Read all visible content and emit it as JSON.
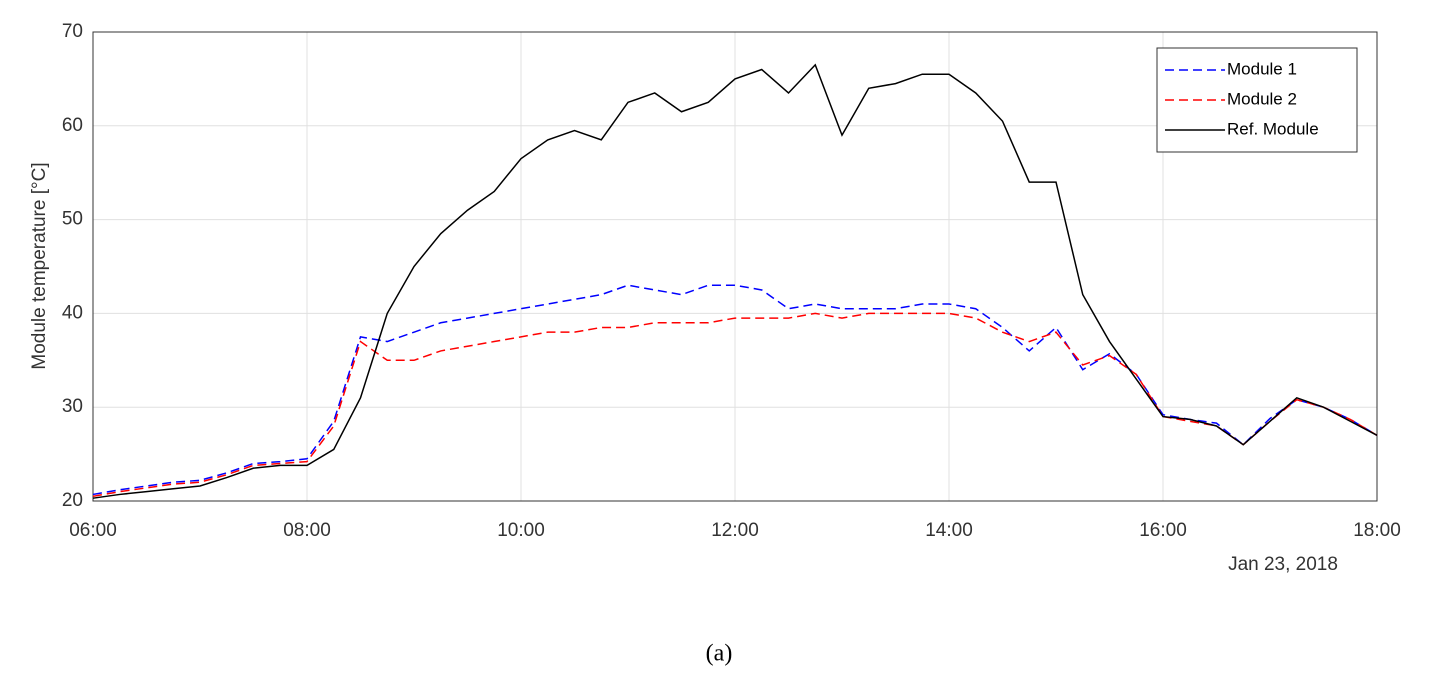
{
  "chart_data": {
    "type": "line",
    "y_label": "Module temperature [°C]",
    "date_label": "Jan 23, 2018",
    "caption": "(a)",
    "x": [
      6,
      6.25,
      6.5,
      6.75,
      7,
      7.25,
      7.5,
      7.75,
      8,
      8.25,
      8.5,
      8.75,
      9,
      9.25,
      9.5,
      9.75,
      10,
      10.25,
      10.5,
      10.75,
      11,
      11.25,
      11.5,
      11.75,
      12,
      12.25,
      12.5,
      12.75,
      13,
      13.25,
      13.5,
      13.75,
      14,
      14.25,
      14.5,
      14.75,
      15,
      15.25,
      15.5,
      15.75,
      16,
      16.25,
      16.5,
      16.75,
      17,
      17.25,
      17.5,
      17.75,
      18
    ],
    "series": [
      {
        "name": "Module 1",
        "color": "#0000ff",
        "dash": true,
        "values": [
          20.7,
          21.2,
          21.6,
          22,
          22.2,
          23,
          24,
          24.2,
          24.5,
          28.5,
          37.5,
          37,
          38,
          39,
          39.5,
          40,
          40.5,
          41,
          41.5,
          42,
          43,
          42.5,
          42,
          43,
          43,
          42.5,
          40.5,
          41,
          40.5,
          40.5,
          40.5,
          41,
          41,
          40.5,
          38.5,
          36,
          38.5,
          34,
          35.7,
          33.5,
          29.2,
          28.7,
          28.3,
          26,
          28.8,
          30.8,
          30,
          28.7,
          27
        ]
      },
      {
        "name": "Module 2",
        "color": "#ff0000",
        "dash": true,
        "values": [
          20.5,
          21,
          21.4,
          21.8,
          22,
          22.8,
          23.8,
          24,
          24.2,
          28,
          37,
          35,
          35,
          36,
          36.5,
          37,
          37.5,
          38,
          38,
          38.5,
          38.5,
          39,
          39,
          39,
          39.5,
          39.5,
          39.5,
          40,
          39.5,
          40,
          40,
          40,
          40,
          39.5,
          38,
          37,
          38,
          34.5,
          35.5,
          33.5,
          29,
          28.5,
          28,
          26,
          28.5,
          30.8,
          30,
          28.7,
          27
        ]
      },
      {
        "name": "Ref. Module",
        "color": "#000000",
        "dash": false,
        "values": [
          20.3,
          20.7,
          21,
          21.3,
          21.6,
          22.5,
          23.5,
          23.8,
          23.8,
          25.5,
          31,
          40,
          45,
          48.5,
          51,
          53,
          56.5,
          58.5,
          59.5,
          58.5,
          62.5,
          63.5,
          61.5,
          62.5,
          65,
          66,
          63.5,
          66.5,
          59,
          64,
          64.5,
          65.5,
          65.5,
          63.5,
          60.5,
          54,
          54,
          42,
          37,
          33,
          29,
          28.7,
          28,
          26,
          28.5,
          31,
          30,
          28.5,
          27
        ]
      }
    ],
    "xlim": [
      6,
      18
    ],
    "xticks": [
      {
        "value": 6,
        "label": "06:00"
      },
      {
        "value": 8,
        "label": "08:00"
      },
      {
        "value": 10,
        "label": "10:00"
      },
      {
        "value": 12,
        "label": "12:00"
      },
      {
        "value": 14,
        "label": "14:00"
      },
      {
        "value": 16,
        "label": "16:00"
      },
      {
        "value": 18,
        "label": "18:00"
      }
    ],
    "ylim": [
      20,
      70
    ],
    "yticks": [
      20,
      30,
      40,
      50,
      60,
      70
    ],
    "grid": true,
    "legend": "top-right"
  }
}
